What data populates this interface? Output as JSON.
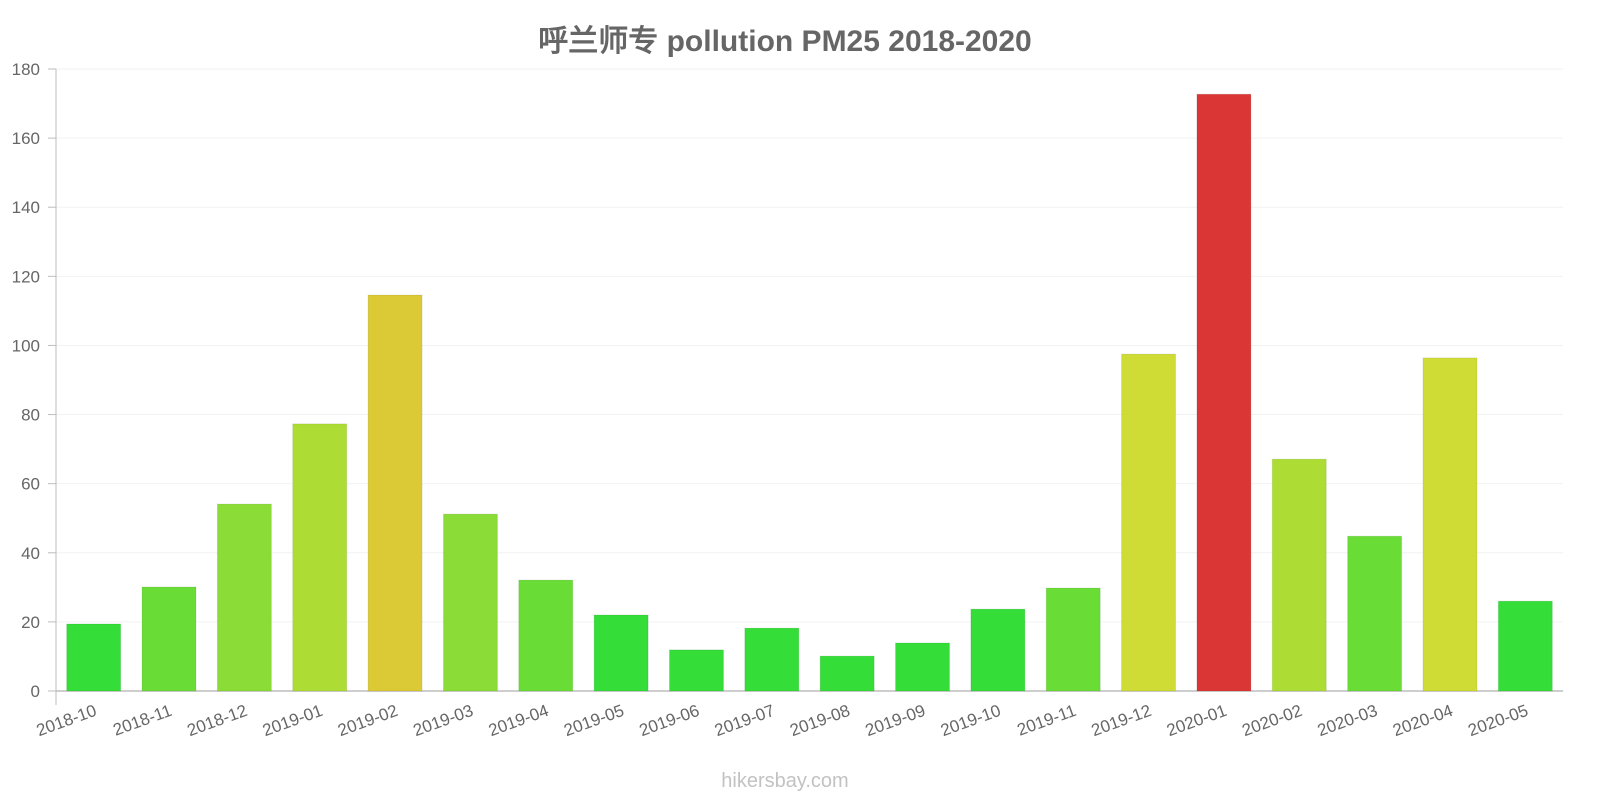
{
  "chart_title": "呼兰师专 pollution PM25 2018-2020",
  "watermark": "hikersbay.com",
  "chart_data": {
    "type": "bar",
    "title": "呼兰师专 pollution PM25 2018-2020",
    "xlabel": "",
    "ylabel": "",
    "ylim": [
      0,
      180
    ],
    "yticks": [
      0,
      20,
      40,
      60,
      80,
      100,
      120,
      140,
      160,
      180
    ],
    "grid": true,
    "legend": null,
    "categories": [
      "2018-10",
      "2018-11",
      "2018-12",
      "2019-01",
      "2019-02",
      "2019-03",
      "2019-04",
      "2019-05",
      "2019-06",
      "2019-07",
      "2019-08",
      "2019-09",
      "2019-10",
      "2019-11",
      "2019-12",
      "2020-01",
      "2020-02",
      "2020-03",
      "2020-04",
      "2020-05"
    ],
    "values": [
      19.4,
      30.1,
      54.1,
      77.3,
      114.6,
      51.2,
      32.1,
      22.0,
      11.9,
      18.2,
      10.1,
      13.9,
      23.7,
      29.8,
      97.5,
      172.7,
      67.1,
      44.8,
      96.4,
      26.0
    ],
    "colors": [
      "#34dd38",
      "#69dd36",
      "#8bdc37",
      "#addd35",
      "#dbca35",
      "#8bdc37",
      "#69dd36",
      "#34dd38",
      "#34dd38",
      "#34dd38",
      "#34dd38",
      "#34dd38",
      "#34dd38",
      "#69dd36",
      "#cfdc35",
      "#db3636",
      "#addd35",
      "#69dd36",
      "#cfdc35",
      "#34dd38"
    ]
  }
}
